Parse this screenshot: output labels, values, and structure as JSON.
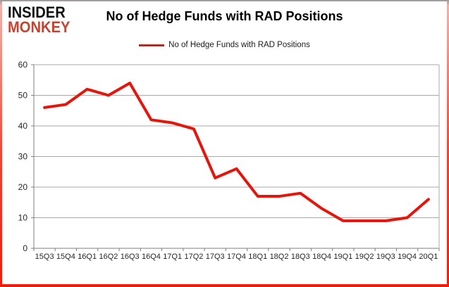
{
  "header": {
    "logo_line1": "INSIDER",
    "logo_line2": "MONKEY",
    "title": "No of Hedge Funds with RAD Positions"
  },
  "legend": {
    "label": "No of Hedge Funds with RAD Positions"
  },
  "colors": {
    "line": "#e8140a",
    "grid": "#a8a8a8",
    "axis": "#7f7f7f",
    "tick_text": "#262626",
    "logo_black": "#111111",
    "logo_red": "#c8432f"
  },
  "chart_data": {
    "type": "line",
    "categories": [
      "15Q3",
      "15Q4",
      "16Q1",
      "16Q2",
      "16Q3",
      "16Q4",
      "17Q1",
      "17Q2",
      "17Q3",
      "17Q4",
      "18Q1",
      "18Q2",
      "18Q3",
      "18Q4",
      "19Q1",
      "19Q2",
      "19Q3",
      "19Q4",
      "20Q1"
    ],
    "series": [
      {
        "name": "No of Hedge Funds with RAD Positions",
        "values": [
          46,
          47,
          52,
          50,
          54,
          42,
          41,
          39,
          23,
          26,
          17,
          17,
          18,
          13,
          9,
          9,
          9,
          10,
          16
        ]
      }
    ],
    "title": "No of Hedge Funds with RAD Positions",
    "xlabel": "",
    "ylabel": "",
    "ylim": [
      0,
      60
    ],
    "yticks": [
      0,
      10,
      20,
      30,
      40,
      50,
      60
    ],
    "grid": "horizontal",
    "legend_position": "top"
  }
}
